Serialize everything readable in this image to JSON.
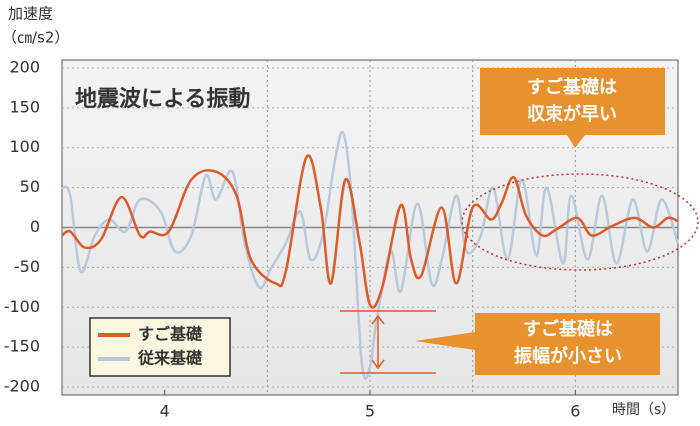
{
  "chart_data": {
    "type": "line",
    "title": "地震波による振動",
    "y_label": [
      "加速度",
      "（㎝/s2）"
    ],
    "x_label": "時間（s）",
    "xlim": [
      3.5,
      6.5
    ],
    "xticks": [
      4,
      5,
      6
    ],
    "xgrid": [
      4.5,
      5,
      5.5,
      6
    ],
    "ylim": [
      -210,
      210
    ],
    "yticks": [
      -200,
      -150,
      -100,
      -50,
      0,
      50,
      100,
      150,
      200
    ],
    "grid": true,
    "legend": "lower left",
    "series": [
      {
        "name": "すご基礎",
        "color": "#dd5a2a",
        "x": [
          3.5,
          3.54,
          3.61,
          3.69,
          3.79,
          3.88,
          3.93,
          4.02,
          4.13,
          4.25,
          4.35,
          4.42,
          4.54,
          4.59,
          4.69,
          4.76,
          4.81,
          4.88,
          4.95,
          5.0,
          5.06,
          5.15,
          5.2,
          5.25,
          5.35,
          5.42,
          5.5,
          5.59,
          5.64,
          5.7,
          5.76,
          5.84,
          5.91,
          6.01,
          6.08,
          6.18,
          6.29,
          6.38,
          6.45,
          6.5
        ],
        "values": [
          -10,
          -5,
          -25,
          -15,
          38,
          -10,
          -5,
          -5,
          60,
          70,
          40,
          -40,
          -70,
          -55,
          88,
          25,
          -70,
          60,
          -20,
          -97,
          -75,
          28,
          -40,
          -60,
          25,
          -70,
          25,
          10,
          30,
          63,
          15,
          -10,
          -2,
          12,
          -10,
          2,
          12,
          0,
          12,
          8
        ]
      },
      {
        "name": "従来基礎",
        "color": "#b9c9dc",
        "x": [
          3.5,
          3.54,
          3.59,
          3.66,
          3.73,
          3.81,
          3.88,
          3.98,
          4.05,
          4.13,
          4.2,
          4.25,
          4.33,
          4.39,
          4.46,
          4.52,
          4.59,
          4.66,
          4.71,
          4.77,
          4.83,
          4.87,
          4.91,
          4.96,
          5.0,
          5.03,
          5.1,
          5.15,
          5.23,
          5.3,
          5.35,
          5.42,
          5.47,
          5.54,
          5.6,
          5.67,
          5.74,
          5.81,
          5.86,
          5.94,
          5.98,
          6.06,
          6.13,
          6.2,
          6.28,
          6.35,
          6.42,
          6.5
        ],
        "values": [
          50,
          40,
          -55,
          -10,
          10,
          -5,
          35,
          20,
          -30,
          -10,
          65,
          35,
          70,
          -20,
          -75,
          -50,
          -20,
          20,
          -40,
          -10,
          85,
          118,
          40,
          -170,
          -175,
          -120,
          -30,
          -80,
          30,
          -70,
          -40,
          40,
          -30,
          -10,
          50,
          -40,
          60,
          -35,
          50,
          -45,
          40,
          -40,
          40,
          -45,
          35,
          -30,
          35,
          -20
        ]
      }
    ],
    "annotations": [
      {
        "lines": [
          "すご基礎は",
          "収束が早い"
        ]
      },
      {
        "lines": [
          "すご基礎は",
          "振幅が小さい"
        ]
      }
    ]
  }
}
